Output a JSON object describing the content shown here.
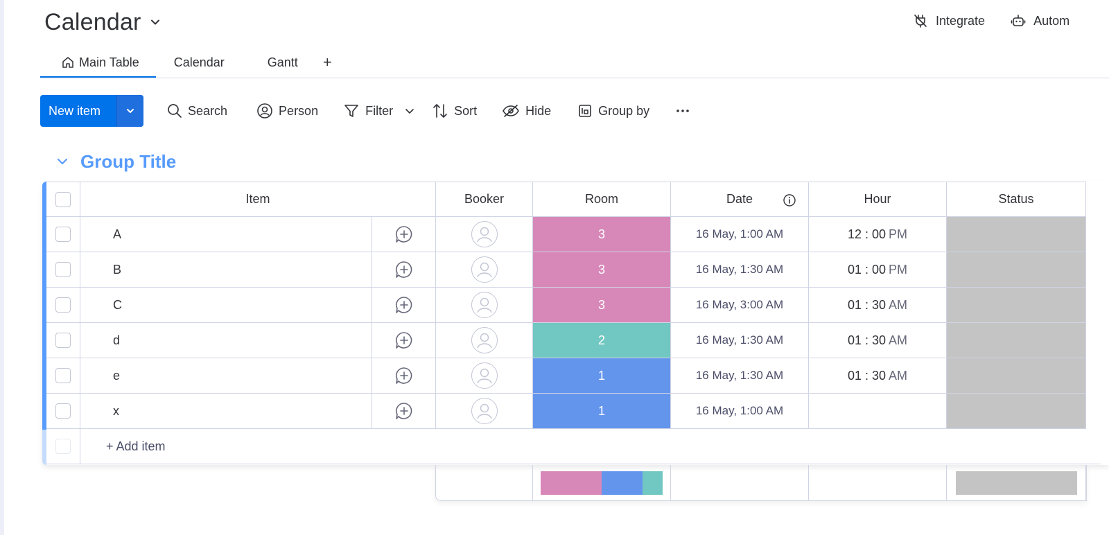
{
  "board": {
    "title": "Calendar"
  },
  "header_actions": [
    {
      "label": "Integrate",
      "icon": "integrate-icon"
    },
    {
      "label": "Autom",
      "icon": "robot-icon"
    }
  ],
  "tabs": [
    {
      "label": "Main Table",
      "active": true,
      "icon": "home-icon"
    },
    {
      "label": "Calendar",
      "active": false
    },
    {
      "label": "Gantt",
      "active": false
    }
  ],
  "tab_add": "+",
  "toolbar": {
    "new_item": "New item",
    "search": "Search",
    "person": "Person",
    "filter": "Filter",
    "sort": "Sort",
    "hide": "Hide",
    "group_by": "Group by"
  },
  "group": {
    "title": "Group Title",
    "color": "#579bfc"
  },
  "columns": {
    "item": "Item",
    "booker": "Booker",
    "room": "Room",
    "date": "Date",
    "hour": "Hour",
    "status": "Status"
  },
  "rows": [
    {
      "item": "A",
      "room": "3",
      "room_color": "#d888b8",
      "date": "16 May, 1:00 AM",
      "hour": "12 : 00",
      "ampm": "PM"
    },
    {
      "item": "B",
      "room": "3",
      "room_color": "#d888b8",
      "date": "16 May, 1:30 AM",
      "hour": "01 : 00",
      "ampm": "PM"
    },
    {
      "item": "C",
      "room": "3",
      "room_color": "#d888b8",
      "date": "16 May, 3:00 AM",
      "hour": "01 : 30",
      "ampm": "AM"
    },
    {
      "item": "d",
      "room": "2",
      "room_color": "#71c7c1",
      "date": "16 May, 1:30 AM",
      "hour": "01 : 30",
      "ampm": "AM"
    },
    {
      "item": "e",
      "room": "1",
      "room_color": "#6495ed",
      "date": "16 May, 1:30 AM",
      "hour": "01 : 30",
      "ampm": "AM"
    },
    {
      "item": "x",
      "room": "1",
      "room_color": "#6495ed",
      "date": "16 May, 1:00 AM",
      "hour": "",
      "ampm": ""
    }
  ],
  "add_item": "+ Add item",
  "summary": {
    "room_distribution": [
      {
        "color": "#d888b8",
        "share": 0.5
      },
      {
        "color": "#6495ed",
        "share": 0.333
      },
      {
        "color": "#71c7c1",
        "share": 0.167
      }
    ],
    "status_color": "#c4c4c4"
  },
  "colors": {
    "primary": "#0073ea",
    "group": "#579bfc",
    "status_empty": "#c4c4c4"
  }
}
